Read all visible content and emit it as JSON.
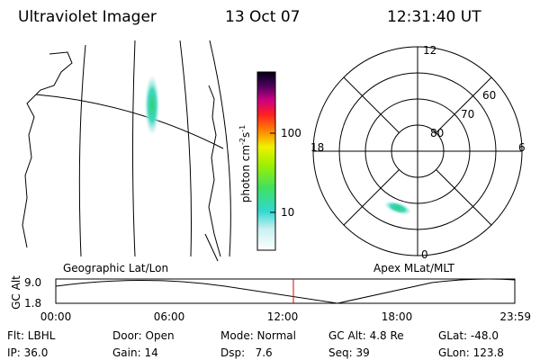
{
  "header": {
    "title": "Ultraviolet Imager",
    "date": "13 Oct 07",
    "time": "12:31:40 UT"
  },
  "colorbar": {
    "label": [
      "photon cm",
      "-2",
      "s",
      "-1"
    ],
    "ticks": [
      "100",
      "10"
    ]
  },
  "polar": {
    "mlt_labels": [
      "12",
      "18",
      "6",
      "0"
    ],
    "lat_labels": [
      "60",
      "70",
      "80"
    ]
  },
  "timeline": {
    "left_label": "Geographic Lat/Lon",
    "right_label": "Apex MLat/MLT",
    "ylabel": "GC Alt",
    "yticks": [
      "9.0",
      "1.8"
    ],
    "xticks": [
      "00:00",
      "06:00",
      "12:00",
      "18:00",
      "23:59"
    ]
  },
  "status": {
    "rows": [
      [
        "Flt: LBHL",
        "Door: Open",
        "Mode: Normal",
        "GC Alt: 4.8 Re",
        "GLat: -48.0"
      ],
      [
        "IP: 36.0",
        "Gain: 14",
        "Dsp:   7.6",
        "Seq: 39",
        "GLon: 123.8"
      ]
    ]
  }
}
